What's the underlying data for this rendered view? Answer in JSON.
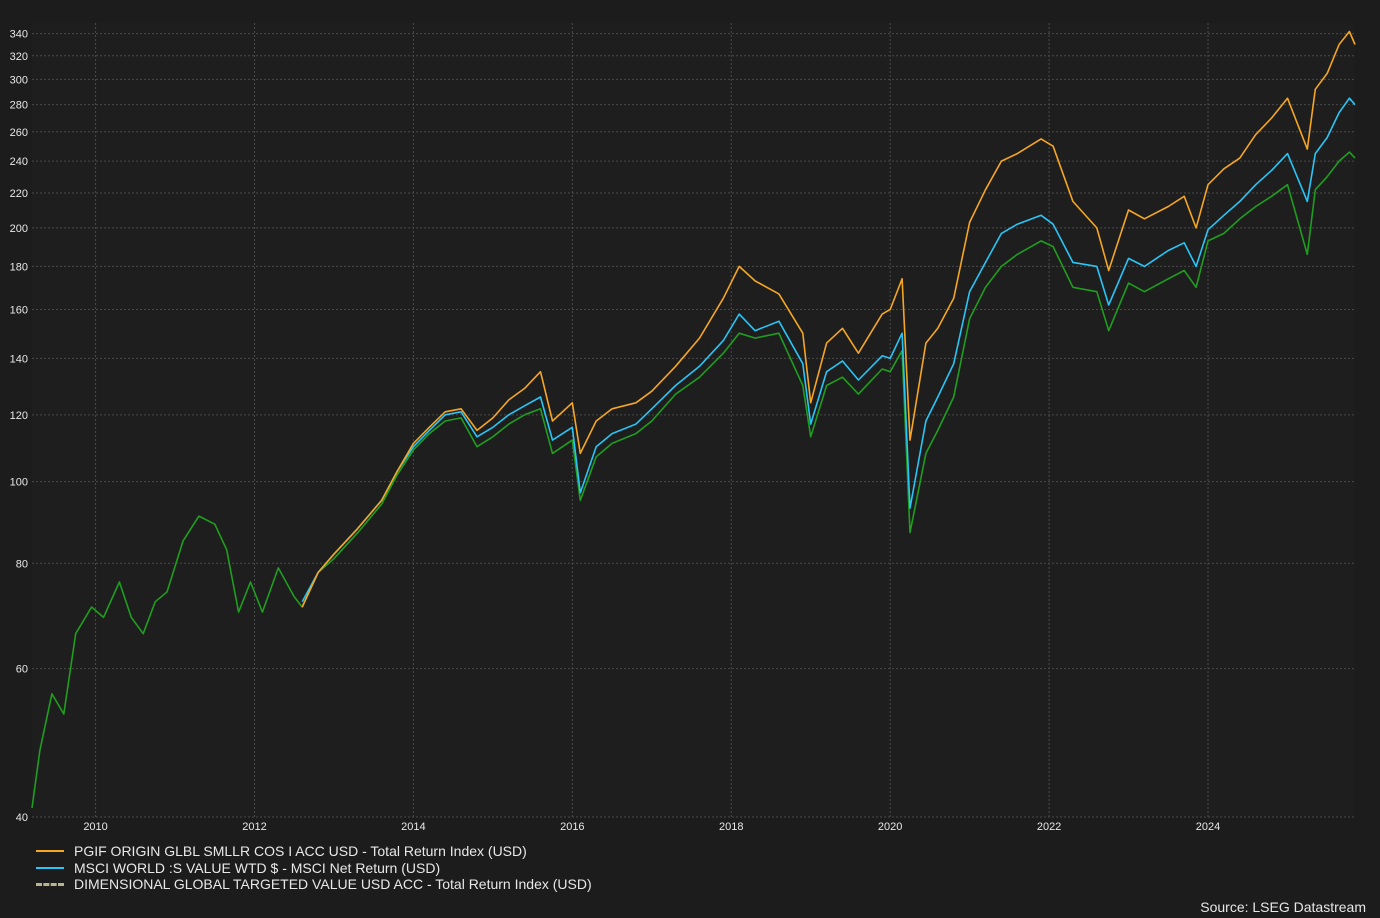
{
  "chart_data": {
    "type": "line",
    "y_scale": "log",
    "ylim": [
      40,
      350
    ],
    "xlim": [
      2009.2,
      2025.85
    ],
    "x_ticks": [
      "2010",
      "2012",
      "2014",
      "2016",
      "2018",
      "2020",
      "2022",
      "2024"
    ],
    "y_ticks": [
      40,
      60,
      80,
      100,
      120,
      140,
      160,
      180,
      200,
      220,
      240,
      260,
      280,
      300,
      320,
      340
    ],
    "grid": true,
    "legend_position": "bottom-left",
    "source": "Source: LSEG Datastream",
    "series": [
      {
        "name": "PGIF ORIGIN GLBL SMLLR COS I ACC USD - Total Return Index (USD)",
        "color": "#f5a623",
        "style": "solid",
        "points": [
          [
            2012.6,
            71
          ],
          [
            2012.8,
            78
          ],
          [
            2013.0,
            82
          ],
          [
            2013.3,
            88
          ],
          [
            2013.6,
            95
          ],
          [
            2013.8,
            103
          ],
          [
            2014.0,
            111
          ],
          [
            2014.2,
            116
          ],
          [
            2014.4,
            121
          ],
          [
            2014.6,
            122
          ],
          [
            2014.8,
            115
          ],
          [
            2015.0,
            119
          ],
          [
            2015.2,
            125
          ],
          [
            2015.4,
            129
          ],
          [
            2015.6,
            135
          ],
          [
            2015.75,
            118
          ],
          [
            2016.0,
            124
          ],
          [
            2016.1,
            108
          ],
          [
            2016.3,
            118
          ],
          [
            2016.5,
            122
          ],
          [
            2016.8,
            124
          ],
          [
            2017.0,
            128
          ],
          [
            2017.3,
            137
          ],
          [
            2017.6,
            148
          ],
          [
            2017.9,
            165
          ],
          [
            2018.1,
            180
          ],
          [
            2018.3,
            173
          ],
          [
            2018.6,
            167
          ],
          [
            2018.9,
            150
          ],
          [
            2019.0,
            124
          ],
          [
            2019.2,
            146
          ],
          [
            2019.4,
            152
          ],
          [
            2019.6,
            142
          ],
          [
            2019.9,
            158
          ],
          [
            2020.0,
            160
          ],
          [
            2020.15,
            174
          ],
          [
            2020.25,
            112
          ],
          [
            2020.45,
            146
          ],
          [
            2020.6,
            152
          ],
          [
            2020.8,
            165
          ],
          [
            2021.0,
            203
          ],
          [
            2021.2,
            222
          ],
          [
            2021.4,
            240
          ],
          [
            2021.6,
            245
          ],
          [
            2021.9,
            255
          ],
          [
            2022.05,
            250
          ],
          [
            2022.3,
            215
          ],
          [
            2022.6,
            200
          ],
          [
            2022.75,
            178
          ],
          [
            2023.0,
            210
          ],
          [
            2023.2,
            205
          ],
          [
            2023.5,
            212
          ],
          [
            2023.7,
            218
          ],
          [
            2023.85,
            200
          ],
          [
            2024.0,
            225
          ],
          [
            2024.2,
            235
          ],
          [
            2024.4,
            242
          ],
          [
            2024.6,
            258
          ],
          [
            2024.8,
            270
          ],
          [
            2025.0,
            285
          ],
          [
            2025.25,
            248
          ],
          [
            2025.35,
            292
          ],
          [
            2025.5,
            305
          ],
          [
            2025.65,
            330
          ],
          [
            2025.78,
            342
          ],
          [
            2025.85,
            330
          ]
        ]
      },
      {
        "name": "MSCI WORLD :S VALUE WTD $ - MSCI Net Return (USD)",
        "color": "#29c5f6",
        "style": "solid",
        "points": [
          [
            2012.6,
            72
          ],
          [
            2012.8,
            78
          ],
          [
            2013.0,
            82
          ],
          [
            2013.3,
            88
          ],
          [
            2013.6,
            95
          ],
          [
            2013.8,
            103
          ],
          [
            2014.0,
            110
          ],
          [
            2014.2,
            115
          ],
          [
            2014.4,
            120
          ],
          [
            2014.6,
            121
          ],
          [
            2014.8,
            113
          ],
          [
            2015.0,
            116
          ],
          [
            2015.2,
            120
          ],
          [
            2015.4,
            123
          ],
          [
            2015.6,
            126
          ],
          [
            2015.75,
            112
          ],
          [
            2016.0,
            116
          ],
          [
            2016.1,
            97
          ],
          [
            2016.3,
            110
          ],
          [
            2016.5,
            114
          ],
          [
            2016.8,
            117
          ],
          [
            2017.0,
            122
          ],
          [
            2017.3,
            130
          ],
          [
            2017.6,
            137
          ],
          [
            2017.9,
            147
          ],
          [
            2018.1,
            158
          ],
          [
            2018.3,
            151
          ],
          [
            2018.6,
            155
          ],
          [
            2018.9,
            138
          ],
          [
            2019.0,
            117
          ],
          [
            2019.2,
            135
          ],
          [
            2019.4,
            139
          ],
          [
            2019.6,
            132
          ],
          [
            2019.9,
            141
          ],
          [
            2020.0,
            140
          ],
          [
            2020.15,
            150
          ],
          [
            2020.25,
            93
          ],
          [
            2020.45,
            118
          ],
          [
            2020.6,
            126
          ],
          [
            2020.8,
            138
          ],
          [
            2021.0,
            168
          ],
          [
            2021.2,
            182
          ],
          [
            2021.4,
            197
          ],
          [
            2021.6,
            202
          ],
          [
            2021.9,
            207
          ],
          [
            2022.05,
            202
          ],
          [
            2022.3,
            182
          ],
          [
            2022.6,
            180
          ],
          [
            2022.75,
            162
          ],
          [
            2023.0,
            184
          ],
          [
            2023.2,
            180
          ],
          [
            2023.5,
            188
          ],
          [
            2023.7,
            192
          ],
          [
            2023.85,
            180
          ],
          [
            2024.0,
            199
          ],
          [
            2024.2,
            207
          ],
          [
            2024.4,
            215
          ],
          [
            2024.6,
            225
          ],
          [
            2024.8,
            234
          ],
          [
            2025.0,
            245
          ],
          [
            2025.25,
            215
          ],
          [
            2025.35,
            245
          ],
          [
            2025.5,
            256
          ],
          [
            2025.65,
            274
          ],
          [
            2025.78,
            285
          ],
          [
            2025.85,
            280
          ]
        ]
      },
      {
        "name": "DIMENSIONAL GLOBAL TARGETED VALUE USD ACC - Total Return Index (USD)",
        "color": "#1f9e1f",
        "style": "dashed",
        "points": [
          [
            2009.2,
            41
          ],
          [
            2009.3,
            48
          ],
          [
            2009.45,
            56
          ],
          [
            2009.6,
            53
          ],
          [
            2009.75,
            66
          ],
          [
            2009.95,
            71
          ],
          [
            2010.1,
            69
          ],
          [
            2010.3,
            76
          ],
          [
            2010.45,
            69
          ],
          [
            2010.6,
            66
          ],
          [
            2010.75,
            72
          ],
          [
            2010.9,
            74
          ],
          [
            2011.1,
            85
          ],
          [
            2011.3,
            91
          ],
          [
            2011.5,
            89
          ],
          [
            2011.65,
            83
          ],
          [
            2011.8,
            70
          ],
          [
            2011.95,
            76
          ],
          [
            2012.1,
            70
          ],
          [
            2012.3,
            79
          ],
          [
            2012.5,
            73
          ],
          [
            2012.6,
            71
          ],
          [
            2012.8,
            78
          ],
          [
            2013.0,
            81
          ],
          [
            2013.3,
            87
          ],
          [
            2013.6,
            94
          ],
          [
            2013.8,
            102
          ],
          [
            2014.0,
            109
          ],
          [
            2014.2,
            114
          ],
          [
            2014.4,
            118
          ],
          [
            2014.6,
            119
          ],
          [
            2014.8,
            110
          ],
          [
            2015.0,
            113
          ],
          [
            2015.2,
            117
          ],
          [
            2015.4,
            120
          ],
          [
            2015.6,
            122
          ],
          [
            2015.75,
            108
          ],
          [
            2016.0,
            112
          ],
          [
            2016.1,
            95
          ],
          [
            2016.3,
            107
          ],
          [
            2016.5,
            111
          ],
          [
            2016.8,
            114
          ],
          [
            2017.0,
            118
          ],
          [
            2017.3,
            127
          ],
          [
            2017.6,
            133
          ],
          [
            2017.9,
            142
          ],
          [
            2018.1,
            150
          ],
          [
            2018.3,
            148
          ],
          [
            2018.6,
            150
          ],
          [
            2018.9,
            130
          ],
          [
            2019.0,
            113
          ],
          [
            2019.2,
            130
          ],
          [
            2019.4,
            133
          ],
          [
            2019.6,
            127
          ],
          [
            2019.9,
            136
          ],
          [
            2020.0,
            135
          ],
          [
            2020.15,
            143
          ],
          [
            2020.25,
            87
          ],
          [
            2020.45,
            108
          ],
          [
            2020.6,
            115
          ],
          [
            2020.8,
            126
          ],
          [
            2021.0,
            156
          ],
          [
            2021.2,
            170
          ],
          [
            2021.4,
            180
          ],
          [
            2021.6,
            186
          ],
          [
            2021.9,
            193
          ],
          [
            2022.05,
            190
          ],
          [
            2022.3,
            170
          ],
          [
            2022.6,
            168
          ],
          [
            2022.75,
            151
          ],
          [
            2023.0,
            172
          ],
          [
            2023.2,
            168
          ],
          [
            2023.5,
            174
          ],
          [
            2023.7,
            178
          ],
          [
            2023.85,
            170
          ],
          [
            2024.0,
            193
          ],
          [
            2024.2,
            197
          ],
          [
            2024.4,
            205
          ],
          [
            2024.6,
            212
          ],
          [
            2024.8,
            218
          ],
          [
            2025.0,
            225
          ],
          [
            2025.25,
            186
          ],
          [
            2025.35,
            222
          ],
          [
            2025.5,
            230
          ],
          [
            2025.65,
            240
          ],
          [
            2025.78,
            246
          ],
          [
            2025.85,
            242
          ]
        ]
      }
    ]
  }
}
